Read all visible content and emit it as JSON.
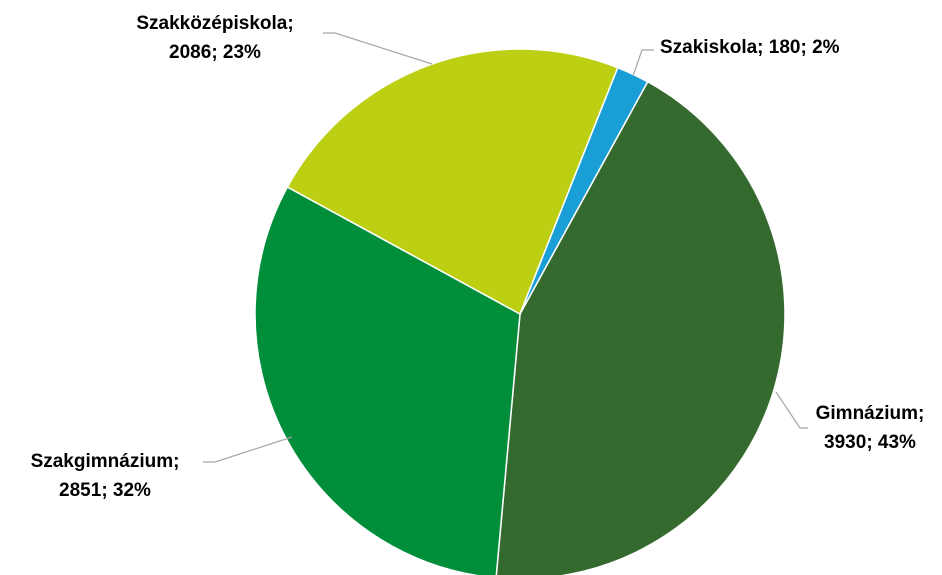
{
  "chart_data": {
    "type": "pie",
    "values": [
      3930,
      2851,
      2086,
      180
    ],
    "value_labels": [
      [
        "Gimnázium;",
        "3930; 43%"
      ],
      [
        "Szakgimnázium;",
        "2851; 32%"
      ],
      [
        "Szakközépiskola;",
        "2086; 23%"
      ],
      [
        "Szakiskola; 180; 2%"
      ]
    ],
    "colors": [
      "#356a2f",
      "#008e3a",
      "#bccf12",
      "#1a9ed6"
    ]
  }
}
